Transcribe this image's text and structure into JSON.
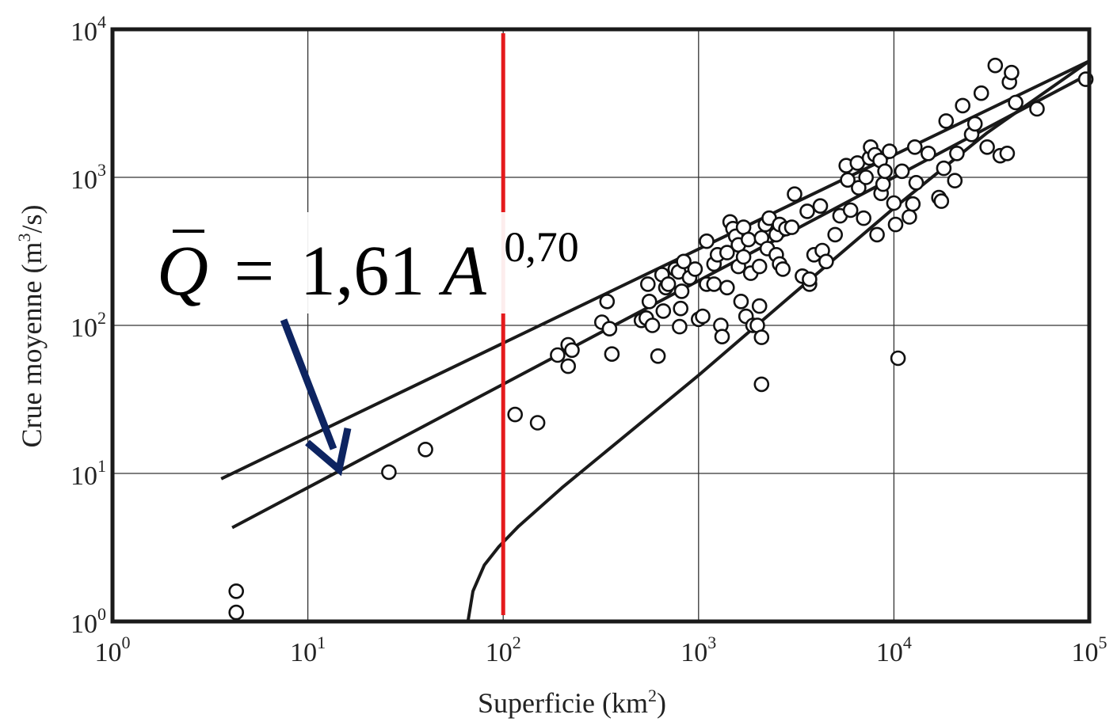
{
  "chart_data": {
    "type": "scatter",
    "title": "",
    "xlabel": "Superficie (km2)",
    "ylabel": "Crue moyenne (m3/s)",
    "xlabel_parts": {
      "base": "Superficie (km",
      "sup": "2",
      "tail": ")"
    },
    "ylabel_parts": {
      "base": "Crue moyenne (m",
      "sup": "3",
      "tail": "/s)"
    },
    "x_scale": "log",
    "y_scale": "log",
    "xlim": [
      1,
      100000
    ],
    "ylim": [
      1,
      10000
    ],
    "grid": true,
    "x_ticks": [
      {
        "base": "10",
        "exp": "0",
        "value": 1
      },
      {
        "base": "10",
        "exp": "1",
        "value": 10
      },
      {
        "base": "10",
        "exp": "2",
        "value": 100
      },
      {
        "base": "10",
        "exp": "3",
        "value": 1000
      },
      {
        "base": "10",
        "exp": "4",
        "value": 10000
      },
      {
        "base": "10",
        "exp": "5",
        "value": 100000
      }
    ],
    "y_ticks": [
      {
        "base": "10",
        "exp": "0",
        "value": 1
      },
      {
        "base": "10",
        "exp": "1",
        "value": 10
      },
      {
        "base": "10",
        "exp": "2",
        "value": 100
      },
      {
        "base": "10",
        "exp": "3",
        "value": 1000
      },
      {
        "base": "10",
        "exp": "4",
        "value": 10000
      }
    ],
    "equation": {
      "Q": "Q",
      "eq": "=",
      "coef": "1,61",
      "var": "A",
      "exp": "0,70"
    },
    "vertical_marker": {
      "x": 100,
      "color": "#e41a1c"
    },
    "arrow_color": "#0d2461",
    "curves": [
      {
        "points": [
          [
            3.6,
            9.2
          ],
          [
            100000,
            6100
          ]
        ]
      },
      {
        "points": [
          [
            4.1,
            4.3
          ],
          [
            100000,
            5000
          ]
        ]
      },
      {
        "points": [
          [
            66,
            1.0
          ],
          [
            70,
            1.6
          ],
          [
            80,
            2.4
          ],
          [
            95,
            3.2
          ],
          [
            120,
            4.4
          ],
          [
            200,
            8
          ],
          [
            400,
            17
          ],
          [
            1000,
            46
          ],
          [
            3000,
            160
          ],
          [
            10000,
            620
          ],
          [
            30000,
            2000
          ],
          [
            100000,
            6100
          ]
        ]
      }
    ],
    "points": [
      [
        4.3,
        1.6
      ],
      [
        4.3,
        1.15
      ],
      [
        26,
        10.2
      ],
      [
        40,
        14.5
      ],
      [
        115,
        25
      ],
      [
        150,
        22
      ],
      [
        190,
        63
      ],
      [
        215,
        74
      ],
      [
        215,
        53
      ],
      [
        225,
        68
      ],
      [
        320,
        105
      ],
      [
        340,
        145
      ],
      [
        350,
        95
      ],
      [
        360,
        64
      ],
      [
        510,
        108
      ],
      [
        540,
        112
      ],
      [
        550,
        190
      ],
      [
        560,
        145
      ],
      [
        580,
        100
      ],
      [
        620,
        62
      ],
      [
        650,
        220
      ],
      [
        660,
        125
      ],
      [
        680,
        180
      ],
      [
        700,
        190
      ],
      [
        760,
        240
      ],
      [
        790,
        230
      ],
      [
        800,
        98
      ],
      [
        810,
        130
      ],
      [
        820,
        170
      ],
      [
        840,
        270
      ],
      [
        900,
        210
      ],
      [
        960,
        240
      ],
      [
        1000,
        110
      ],
      [
        1050,
        115
      ],
      [
        1100,
        190
      ],
      [
        1100,
        370
      ],
      [
        1200,
        190
      ],
      [
        1200,
        260
      ],
      [
        1250,
        300
      ],
      [
        1300,
        100
      ],
      [
        1320,
        84
      ],
      [
        1400,
        180
      ],
      [
        1400,
        310
      ],
      [
        1450,
        500
      ],
      [
        1500,
        450
      ],
      [
        1550,
        400
      ],
      [
        1600,
        250
      ],
      [
        1600,
        350
      ],
      [
        1650,
        145
      ],
      [
        1700,
        460
      ],
      [
        1700,
        290
      ],
      [
        1750,
        115
      ],
      [
        1800,
        380
      ],
      [
        1850,
        225
      ],
      [
        1900,
        100
      ],
      [
        2000,
        100
      ],
      [
        2050,
        250
      ],
      [
        2050,
        135
      ],
      [
        2100,
        83
      ],
      [
        2100,
        40
      ],
      [
        2100,
        390
      ],
      [
        2200,
        480
      ],
      [
        2250,
        330
      ],
      [
        2300,
        530
      ],
      [
        2500,
        410
      ],
      [
        2500,
        300
      ],
      [
        2600,
        480
      ],
      [
        2600,
        260
      ],
      [
        2700,
        240
      ],
      [
        2800,
        450
      ],
      [
        3000,
        460
      ],
      [
        3100,
        770
      ],
      [
        3400,
        215
      ],
      [
        3600,
        590
      ],
      [
        3700,
        190
      ],
      [
        3700,
        205
      ],
      [
        3900,
        300
      ],
      [
        4200,
        640
      ],
      [
        4300,
        320
      ],
      [
        4500,
        270
      ],
      [
        5000,
        410
      ],
      [
        5300,
        550
      ],
      [
        5700,
        1200
      ],
      [
        5800,
        960
      ],
      [
        6000,
        600
      ],
      [
        6500,
        1250
      ],
      [
        6600,
        850
      ],
      [
        7000,
        530
      ],
      [
        7200,
        1000
      ],
      [
        7500,
        1350
      ],
      [
        7600,
        1600
      ],
      [
        8000,
        1420
      ],
      [
        8200,
        410
      ],
      [
        8500,
        1300
      ],
      [
        8600,
        780
      ],
      [
        8800,
        900
      ],
      [
        9000,
        1100
      ],
      [
        9500,
        1500
      ],
      [
        10000,
        670
      ],
      [
        10200,
        480
      ],
      [
        10500,
        60
      ],
      [
        11000,
        1100
      ],
      [
        12000,
        540
      ],
      [
        12500,
        660
      ],
      [
        12800,
        1600
      ],
      [
        13000,
        920
      ],
      [
        15000,
        1450
      ],
      [
        17000,
        730
      ],
      [
        17500,
        690
      ],
      [
        18000,
        1150
      ],
      [
        18500,
        2400
      ],
      [
        20500,
        950
      ],
      [
        21000,
        1450
      ],
      [
        22500,
        3050
      ],
      [
        25000,
        1950
      ],
      [
        26000,
        2300
      ],
      [
        28000,
        3700
      ],
      [
        30000,
        1600
      ],
      [
        33000,
        5700
      ],
      [
        35000,
        1400
      ],
      [
        38000,
        1450
      ],
      [
        39000,
        4400
      ],
      [
        40000,
        5100
      ],
      [
        42000,
        3200
      ],
      [
        54000,
        2900
      ],
      [
        96000,
        4600
      ]
    ]
  }
}
